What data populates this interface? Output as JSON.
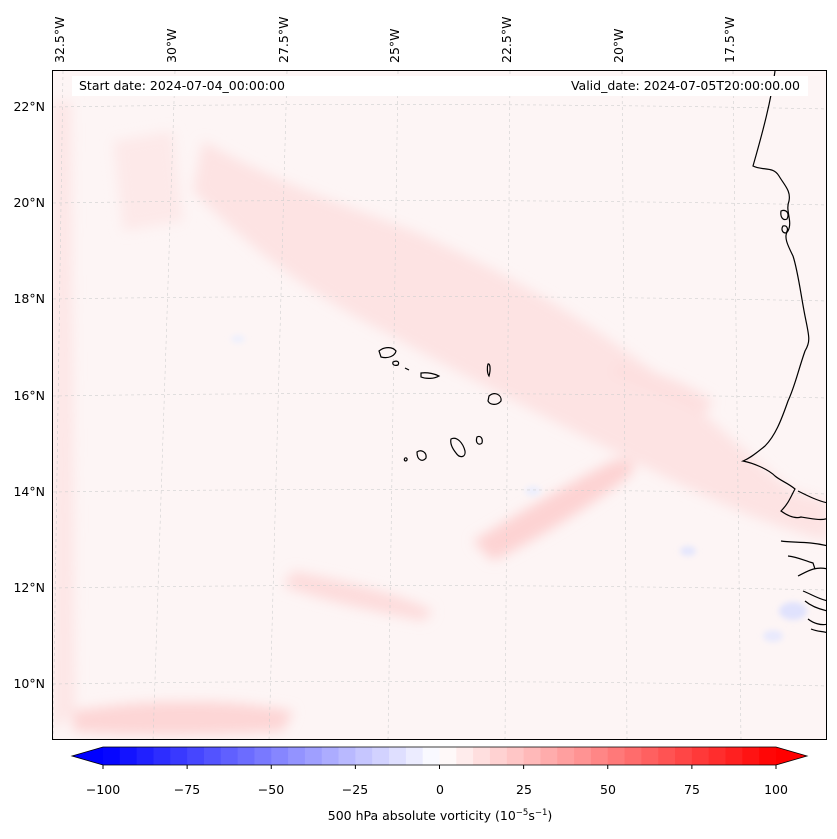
{
  "map": {
    "start_date": "Start date: 2024-07-04_00:00:00",
    "valid_date": "Valid_date: 2024-07-05T20:00:00.00",
    "lat_labels": [
      "22°N",
      "20°N",
      "18°N",
      "16°N",
      "14°N",
      "12°N",
      "10°N"
    ],
    "lon_labels": [
      "32.5°W",
      "30°W",
      "27.5°W",
      "25°W",
      "22.5°W",
      "20°W",
      "17.5°W"
    ],
    "field": "500 hPa absolute vorticity",
    "colors": {
      "neg_max": "#0000ff",
      "pos_max": "#ff0000",
      "background_field": "#fdf4f4",
      "coast": "#000000",
      "grid": "#c8c8c8"
    }
  },
  "colorbar": {
    "ticks": [
      "−100",
      "−75",
      "−50",
      "−25",
      "0",
      "25",
      "50",
      "75",
      "100"
    ],
    "label_prefix": "500 hPa absolute vorticity (10",
    "label_exp1": "−5",
    "label_mid": "s",
    "label_exp2": "−1",
    "label_suffix": ")",
    "vmin": -100,
    "vmax": 100,
    "levels": 41
  }
}
